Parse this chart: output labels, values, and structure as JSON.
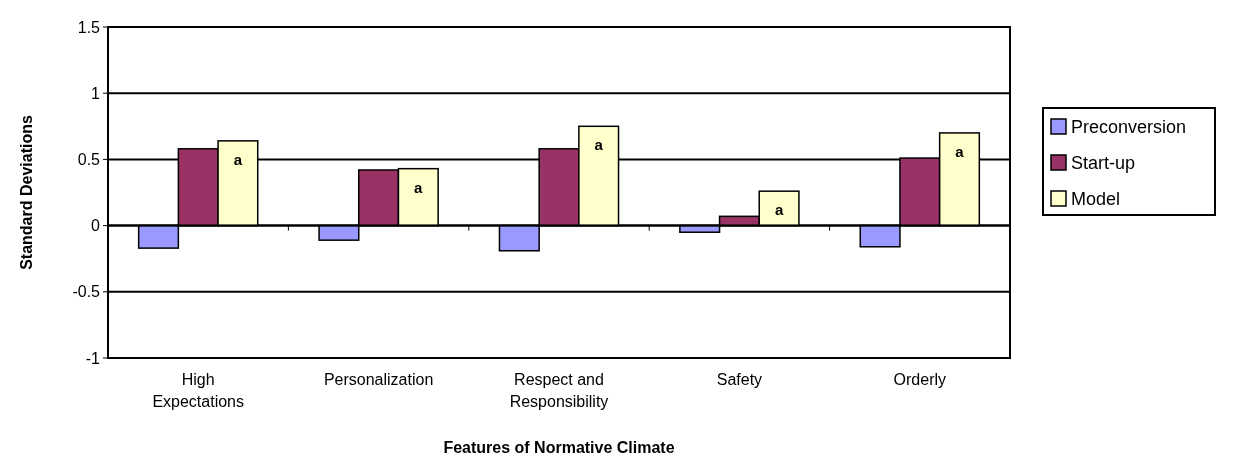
{
  "chart_data": {
    "type": "bar",
    "xlabel": "Features of Normative Climate",
    "ylabel": "Standard Deviations",
    "categories": [
      "High Expectations",
      "Personalization",
      "Respect and Responsibility",
      "Safety",
      "Orderly"
    ],
    "series": [
      {
        "name": "Preconversion",
        "color": "#9999ff",
        "values": [
          -0.17,
          -0.11,
          -0.19,
          -0.05,
          -0.16
        ]
      },
      {
        "name": "Start-up",
        "color": "#993366",
        "values": [
          0.58,
          0.42,
          0.58,
          0.07,
          0.51
        ]
      },
      {
        "name": "Model",
        "color": "#ffffcc",
        "values": [
          0.64,
          0.43,
          0.75,
          0.26,
          0.7
        ],
        "value_labels": [
          "a",
          "a",
          "a",
          "a",
          "a"
        ]
      }
    ],
    "ylim": [
      -1,
      1.5
    ],
    "yticks": [
      -1,
      -0.5,
      0,
      0.5,
      1,
      1.5
    ],
    "grid": "y",
    "legend": "right"
  }
}
